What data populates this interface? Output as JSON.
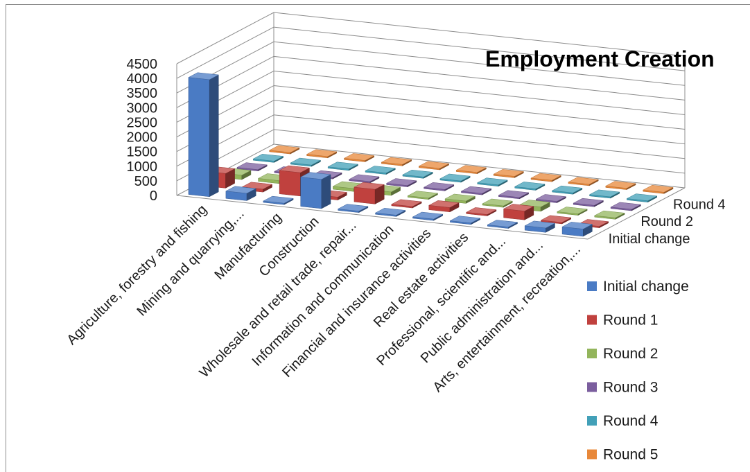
{
  "chart_data": {
    "type": "bar",
    "title": "Employment Creation",
    "categories": [
      "Agriculture, forestry and fishing",
      "Mining and quarrying,...",
      "Manufacturing",
      "Construction",
      "Wholesale and retail trade, repair...",
      "Information and communication",
      "Financial and insurance activities",
      "Real estate activities",
      "Professional, scientific and...",
      "Public administration and...",
      "Arts, entertainment, recreation,..."
    ],
    "series": [
      {
        "name": "Initial change",
        "color": "#4a7bc4",
        "values": [
          4000,
          250,
          20,
          1000,
          30,
          20,
          40,
          50,
          20,
          150,
          250
        ]
      },
      {
        "name": "Round 1",
        "color": "#c0413e",
        "values": [
          500,
          100,
          800,
          100,
          500,
          50,
          150,
          20,
          300,
          20,
          50
        ]
      },
      {
        "name": "Round 2",
        "color": "#93b55c",
        "values": [
          150,
          100,
          50,
          100,
          120,
          20,
          80,
          50,
          150,
          20,
          50
        ]
      },
      {
        "name": "Round 3",
        "color": "#7b5e9e",
        "values": [
          20,
          20,
          20,
          20,
          20,
          20,
          20,
          20,
          20,
          20,
          20
        ]
      },
      {
        "name": "Round 4",
        "color": "#42a0b8",
        "values": [
          20,
          20,
          20,
          20,
          20,
          20,
          20,
          20,
          20,
          20,
          20
        ]
      },
      {
        "name": "Round 5",
        "color": "#e8883a",
        "values": [
          20,
          20,
          20,
          20,
          20,
          20,
          20,
          20,
          20,
          20,
          20
        ]
      }
    ],
    "depth_labels": [
      "Initial change",
      "Round 2",
      "Round 4"
    ],
    "ylim": [
      0,
      4500
    ],
    "yticks": [
      "0",
      "500",
      "1000",
      "1500",
      "2000",
      "2500",
      "3000",
      "3500",
      "4000",
      "4500"
    ],
    "grid": true,
    "legend": "right"
  }
}
